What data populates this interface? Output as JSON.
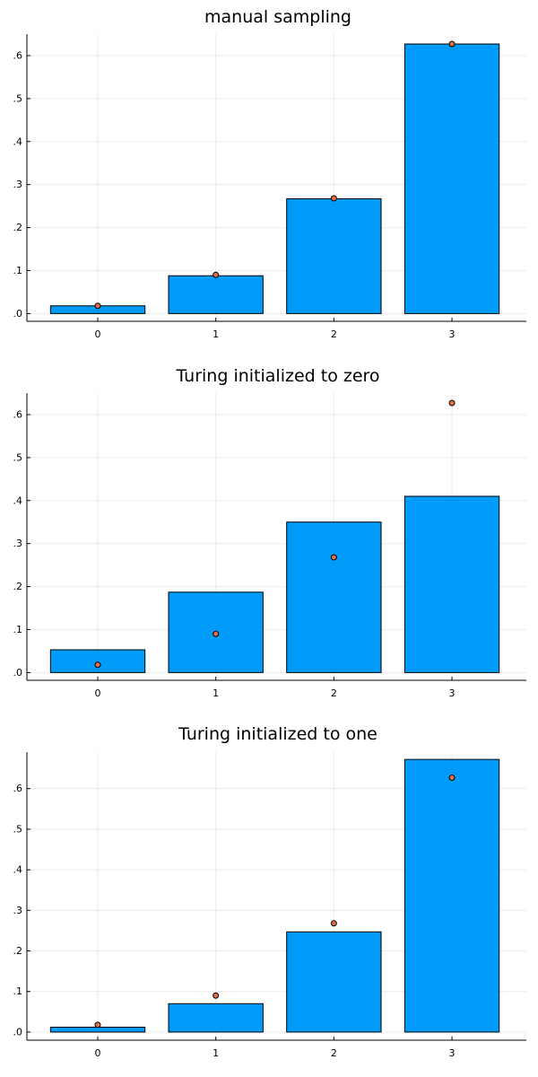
{
  "chart_data": [
    {
      "type": "bar",
      "title": "manual sampling",
      "categories": [
        "0",
        "1",
        "2",
        "3"
      ],
      "bar_values": [
        0.018,
        0.088,
        0.267,
        0.627
      ],
      "point_values": [
        0.018,
        0.09,
        0.268,
        0.627
      ],
      "ylim": [
        -0.018,
        0.65
      ],
      "yticks": [
        0.0,
        0.1,
        0.2,
        0.3,
        0.4,
        0.5,
        0.6
      ],
      "ytick_labels": [
        ".0",
        ".1",
        ".2",
        ".3",
        ".4",
        ".5",
        ".6"
      ],
      "grid": true
    },
    {
      "type": "bar",
      "title": "Turing initialized to zero",
      "categories": [
        "0",
        "1",
        "2",
        "3"
      ],
      "bar_values": [
        0.053,
        0.187,
        0.35,
        0.41
      ],
      "point_values": [
        0.018,
        0.09,
        0.268,
        0.627
      ],
      "ylim": [
        -0.018,
        0.65
      ],
      "yticks": [
        0.0,
        0.1,
        0.2,
        0.3,
        0.4,
        0.5,
        0.6
      ],
      "ytick_labels": [
        ".0",
        ".1",
        ".2",
        ".3",
        ".4",
        ".5",
        ".6"
      ],
      "grid": true
    },
    {
      "type": "bar",
      "title": "Turing initialized to one",
      "categories": [
        "0",
        "1",
        "2",
        "3"
      ],
      "bar_values": [
        0.012,
        0.07,
        0.247,
        0.672
      ],
      "point_values": [
        0.018,
        0.09,
        0.268,
        0.627
      ],
      "ylim": [
        -0.02,
        0.69
      ],
      "yticks": [
        0.0,
        0.1,
        0.2,
        0.3,
        0.4,
        0.5,
        0.6
      ],
      "ytick_labels": [
        ".0",
        ".1",
        ".2",
        ".3",
        ".4",
        ".5",
        ".6"
      ],
      "grid": true
    }
  ],
  "colors": {
    "bar_fill": "#009AF9",
    "point_fill": "#E26F46"
  }
}
